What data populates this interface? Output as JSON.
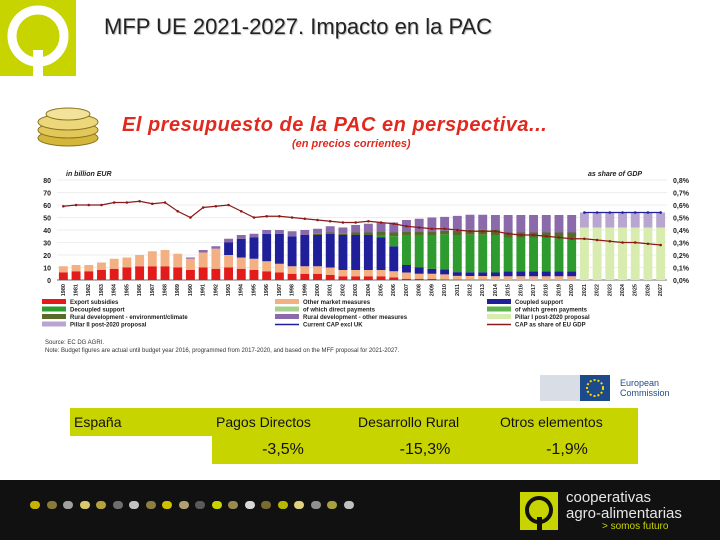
{
  "slide": {
    "title": "MFP UE 2021-2027. Impacto en la PAC"
  },
  "chart_data": {
    "type": "bar",
    "title": "El presupuesto de la PAC en perspectiva...",
    "subtitle": "(en precios corrientes)",
    "ylabel": "in billion EUR",
    "y2label": "as share of GDP",
    "ylim": [
      0,
      80
    ],
    "y2lim": [
      0,
      0.8
    ],
    "yticks": [
      "0",
      "10",
      "20",
      "30",
      "40",
      "50",
      "60",
      "70",
      "80"
    ],
    "y2ticks": [
      "0,0%",
      "0,1%",
      "0,2%",
      "0,3%",
      "0,4%",
      "0,5%",
      "0,6%",
      "0,7%",
      "0,8%"
    ],
    "categories": [
      "1980",
      "1981",
      "1982",
      "1983",
      "1984",
      "1985",
      "1986",
      "1987",
      "1988",
      "1989",
      "1990",
      "1991",
      "1992",
      "1993",
      "1994",
      "1995",
      "1996",
      "1997",
      "1998",
      "1999",
      "2000",
      "2001",
      "2002",
      "2003",
      "2004",
      "2005",
      "2006",
      "2007",
      "2008",
      "2009",
      "2010",
      "2011",
      "2012",
      "2013",
      "2014",
      "2015",
      "2016",
      "2017",
      "2018",
      "2019",
      "2020",
      "2021",
      "2022",
      "2023",
      "2024",
      "2025",
      "2026",
      "2027"
    ],
    "series": [
      {
        "name": "Export subsidies",
        "color": "#e31b1b",
        "values": [
          6,
          7,
          7,
          8,
          9,
          10,
          11,
          11,
          11,
          10,
          8,
          10,
          9,
          10,
          9,
          8,
          7,
          6,
          5,
          5,
          5,
          4,
          3,
          3,
          3,
          3,
          2,
          1,
          1,
          1,
          0.5,
          0.3,
          0.2,
          0.2,
          0,
          0,
          0,
          0,
          0,
          0,
          0,
          0,
          0,
          0,
          0,
          0,
          0,
          0
        ]
      },
      {
        "name": "Other market measures",
        "color": "#f3b183",
        "values": [
          5,
          5,
          5,
          6,
          8,
          8,
          9,
          12,
          13,
          11,
          9,
          12,
          16,
          10,
          9,
          9,
          8,
          7,
          6,
          6,
          6,
          6,
          5,
          5,
          5,
          5,
          5,
          5,
          4,
          4,
          4,
          3,
          3,
          3,
          3,
          3,
          3,
          3,
          3,
          3,
          3,
          0,
          0,
          0,
          0,
          0,
          0,
          0
        ]
      },
      {
        "name": "Coupled support",
        "color": "#1f1f99",
        "values": [
          0,
          0,
          0,
          0,
          0,
          0,
          0,
          0,
          0,
          0,
          0,
          0,
          0,
          10,
          15,
          17,
          22,
          24,
          24,
          25,
          25,
          27,
          28,
          28,
          28,
          26,
          20,
          6,
          5,
          4,
          4,
          3,
          3,
          3,
          3,
          4,
          4,
          4,
          4,
          4,
          4,
          0,
          0,
          0,
          0,
          0,
          0,
          0
        ]
      },
      {
        "name": "Decoupled support",
        "color": "#2d9b2d",
        "values": [
          0,
          0,
          0,
          0,
          0,
          0,
          0,
          0,
          0,
          0,
          0,
          0,
          0,
          0,
          0,
          0,
          0,
          0,
          0,
          0,
          0,
          0,
          0,
          0,
          0,
          2,
          8,
          24,
          26,
          27,
          28,
          29,
          30,
          30,
          30,
          27,
          27,
          27,
          27,
          27,
          27,
          0,
          0,
          0,
          0,
          0,
          0,
          0
        ]
      },
      {
        "name": "Rural development - environment/climate",
        "color": "#5a6a2a",
        "values": [
          0,
          0,
          0,
          0,
          0,
          0,
          0,
          0,
          0,
          0,
          0,
          0,
          0,
          0,
          0,
          0,
          0,
          0,
          0,
          0,
          1,
          1,
          1,
          2,
          2,
          3,
          3,
          3,
          3,
          3,
          3,
          4,
          4,
          4,
          4,
          4,
          4,
          4,
          4,
          4,
          4,
          0,
          0,
          0,
          0,
          0,
          0,
          0
        ]
      },
      {
        "name": "Rural development - other measures",
        "color": "#8a6aaa",
        "values": [
          0,
          0,
          0,
          0,
          0,
          0,
          0,
          0,
          0,
          0,
          1,
          2,
          2,
          3,
          3,
          3,
          3,
          3,
          4,
          4,
          4,
          5,
          5,
          6,
          7,
          7,
          8,
          9,
          10,
          11,
          11,
          12,
          12,
          12,
          12,
          14,
          14,
          14,
          14,
          14,
          14,
          0,
          0,
          0,
          0,
          0,
          0,
          0
        ]
      },
      {
        "name": "Pillar I post-2020 proposal",
        "color": "#d9ecb0",
        "values": [
          0,
          0,
          0,
          0,
          0,
          0,
          0,
          0,
          0,
          0,
          0,
          0,
          0,
          0,
          0,
          0,
          0,
          0,
          0,
          0,
          0,
          0,
          0,
          0,
          0,
          0,
          0,
          0,
          0,
          0,
          0,
          0,
          0,
          0,
          0,
          0,
          0,
          0,
          0,
          0,
          0,
          42,
          42,
          42,
          42,
          42,
          42,
          42
        ]
      },
      {
        "name": "Pillar II post-2020 proposal",
        "color": "#b9a6d0",
        "values": [
          0,
          0,
          0,
          0,
          0,
          0,
          0,
          0,
          0,
          0,
          0,
          0,
          0,
          0,
          0,
          0,
          0,
          0,
          0,
          0,
          0,
          0,
          0,
          0,
          0,
          0,
          0,
          0,
          0,
          0,
          0,
          0,
          0,
          0,
          0,
          0,
          0,
          0,
          0,
          0,
          0,
          12,
          12,
          12,
          12,
          12,
          12,
          12
        ]
      }
    ],
    "line_series": [
      {
        "name": "CAP as share of EU GDP",
        "axis": "right",
        "color": "#8b1a1a",
        "values": [
          0.59,
          0.6,
          0.6,
          0.6,
          0.62,
          0.62,
          0.63,
          0.61,
          0.62,
          0.55,
          0.5,
          0.58,
          0.59,
          0.6,
          0.55,
          0.5,
          0.51,
          0.51,
          0.5,
          0.49,
          0.48,
          0.47,
          0.46,
          0.46,
          0.47,
          0.46,
          0.45,
          0.43,
          0.42,
          0.41,
          0.41,
          0.4,
          0.39,
          0.39,
          0.39,
          0.37,
          0.36,
          0.36,
          0.35,
          0.34,
          0.33,
          0.33,
          0.32,
          0.31,
          0.3,
          0.3,
          0.29,
          0.28
        ]
      },
      {
        "name": "Current CAP excl UK",
        "axis": "left",
        "color": "#1f1f99",
        "values": [
          null,
          null,
          null,
          null,
          null,
          null,
          null,
          null,
          null,
          null,
          null,
          null,
          null,
          null,
          null,
          null,
          null,
          null,
          null,
          null,
          null,
          null,
          null,
          null,
          null,
          null,
          null,
          null,
          null,
          null,
          null,
          null,
          null,
          null,
          null,
          null,
          null,
          null,
          null,
          null,
          null,
          54,
          54,
          54,
          54,
          54,
          54,
          54
        ]
      }
    ],
    "legend": [
      "Export subsidies",
      "Other market measures",
      "Coupled support",
      "Decoupled support",
      "of which direct payments",
      "of which green payments",
      "Rural development - environment/climate",
      "Rural development - other measures",
      "Pillar I post-2020 proposal",
      "Pillar II post-2020 proposal",
      "Current CAP excl UK",
      "CAP as share of EU GDP"
    ],
    "legend_colors": [
      "#e31b1b",
      "#f3b183",
      "#1f1f99",
      "#2d9b2d",
      "#a8d08d",
      "#5fb44f",
      "#5a6a2a",
      "#8a6aaa",
      "#d9ecb0",
      "#b9a6d0",
      "#1f1f99",
      "#8b1a1a"
    ],
    "source": "Source: EC DG AGRI.",
    "note": "Note: Budget figures are actual until budget year 2016, programmed from 2017-2020, and based on the MFF proposal for 2021-2027."
  },
  "ec_logo": {
    "line1": "European",
    "line2": "Commission"
  },
  "results": {
    "country": "España",
    "cols": [
      {
        "label": "Pagos Directos",
        "value": "-3,5%"
      },
      {
        "label": "Desarrollo Rural",
        "value": "-15,3%"
      },
      {
        "label": "Otros elementos",
        "value": "-1,9%"
      }
    ]
  },
  "footer": {
    "brand_line1": "cooperativas",
    "brand_line2": "agro-alimentarias",
    "tagline": "> somos futuro",
    "dot_colors": [
      "#c8b400",
      "#8a7a3a",
      "#a0a0a0",
      "#d8c86a",
      "#b4a23e",
      "#6e6e6e",
      "#c2c2c2",
      "#8e7e44",
      "#d0c000",
      "#b0a070",
      "#5a5a5a",
      "#c8d400",
      "#9a8a50",
      "#d8d8d8",
      "#7a6a30",
      "#b8b800",
      "#e0d080",
      "#909090",
      "#a8a040",
      "#c0c0c0"
    ]
  }
}
